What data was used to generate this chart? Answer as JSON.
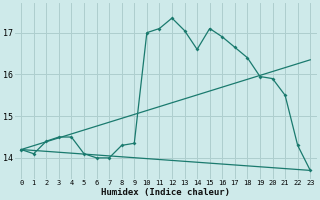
{
  "xlabel": "Humidex (Indice chaleur)",
  "ylabel": "",
  "bg_color": "#ceeaea",
  "grid_color": "#aecece",
  "line_color": "#1a7a6e",
  "xlim": [
    -0.5,
    23.5
  ],
  "ylim": [
    13.5,
    17.7
  ],
  "yticks": [
    14,
    15,
    16,
    17
  ],
  "xticks": [
    0,
    1,
    2,
    3,
    4,
    5,
    6,
    7,
    8,
    9,
    10,
    11,
    12,
    13,
    14,
    15,
    16,
    17,
    18,
    19,
    20,
    21,
    22,
    23
  ],
  "line1_x": [
    0,
    1,
    2,
    3,
    4,
    5,
    6,
    7,
    8,
    9,
    10,
    11,
    12,
    13,
    14,
    15,
    16,
    17,
    18,
    19,
    20,
    21,
    22,
    23
  ],
  "line1_y": [
    14.2,
    14.1,
    14.4,
    14.5,
    14.5,
    14.1,
    14.0,
    14.0,
    14.3,
    14.35,
    17.0,
    17.1,
    17.35,
    17.05,
    16.6,
    17.1,
    16.9,
    16.65,
    16.4,
    15.95,
    15.9,
    15.5,
    14.3,
    13.7
  ],
  "line2_x": [
    0,
    23
  ],
  "line2_y": [
    14.2,
    16.35
  ],
  "line3_x": [
    0,
    23
  ],
  "line3_y": [
    14.2,
    13.7
  ]
}
